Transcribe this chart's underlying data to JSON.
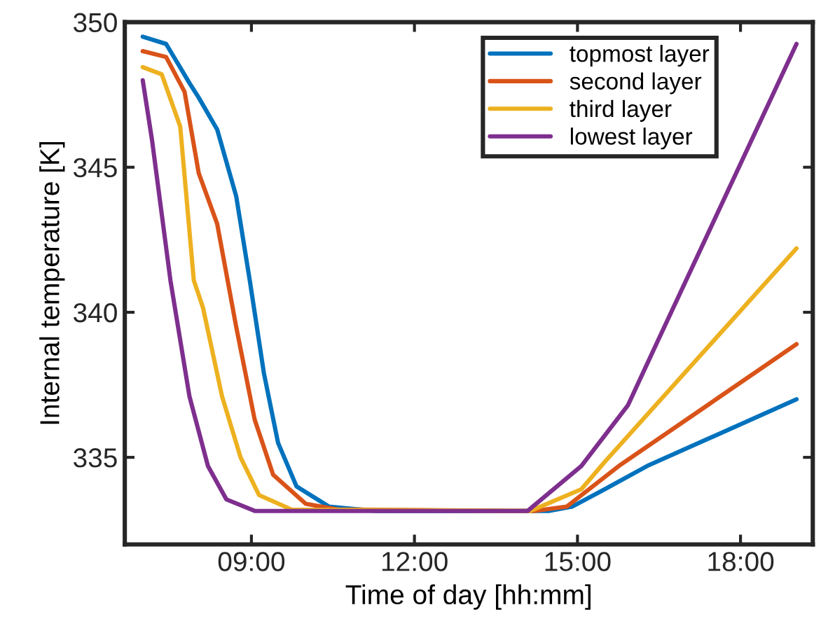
{
  "chart_data": {
    "type": "line",
    "xlabel": "Time of day [hh:mm]",
    "ylabel": "Internal temperature [K]",
    "xlim": [
      6.67,
      19.33
    ],
    "ylim": [
      332,
      350
    ],
    "xticks": [
      {
        "value": 9,
        "label": "09:00"
      },
      {
        "value": 12,
        "label": "12:00"
      },
      {
        "value": 15,
        "label": "15:00"
      },
      {
        "value": 18,
        "label": "18:00"
      }
    ],
    "yticks": [
      335,
      340,
      345,
      350
    ],
    "grid": false,
    "legend": "top right",
    "line_style": "solid",
    "marker": "none",
    "series": [
      {
        "name": "topmost layer",
        "color": "#0072bd",
        "x": [
          7.0,
          7.43,
          7.86,
          8.03,
          8.37,
          8.72,
          8.97,
          9.23,
          9.49,
          9.83,
          10.43,
          11.3,
          14.3,
          14.47,
          14.9,
          15.5,
          16.28,
          19.03
        ],
        "values": [
          349.5,
          349.25,
          347.9,
          347.4,
          346.3,
          344.0,
          341.1,
          337.9,
          335.5,
          334.0,
          333.3,
          333.15,
          333.15,
          333.15,
          333.3,
          333.9,
          334.7,
          337.0
        ]
      },
      {
        "name": "second layer",
        "color": "#d95319",
        "x": [
          7.0,
          7.43,
          7.77,
          8.03,
          8.37,
          8.72,
          9.06,
          9.4,
          10.0,
          10.6,
          14.2,
          14.8,
          15.76,
          19.03
        ],
        "values": [
          349.0,
          348.8,
          347.6,
          344.8,
          343.05,
          339.5,
          336.3,
          334.4,
          333.4,
          333.2,
          333.15,
          333.3,
          334.7,
          338.9
        ]
      },
      {
        "name": "third layer",
        "color": "#edb120",
        "x": [
          7.0,
          7.35,
          7.69,
          7.94,
          8.11,
          8.46,
          8.8,
          9.14,
          9.74,
          14.13,
          15.07,
          15.5,
          19.03
        ],
        "values": [
          348.45,
          348.2,
          346.4,
          341.1,
          340.15,
          337.1,
          335.0,
          333.7,
          333.2,
          333.15,
          333.9,
          334.84,
          342.2
        ]
      },
      {
        "name": "lowest layer",
        "color": "#7e2f8e",
        "x": [
          7.0,
          7.17,
          7.51,
          7.86,
          8.2,
          8.54,
          9.07,
          14.08,
          15.07,
          15.93,
          16.45,
          19.03
        ],
        "values": [
          348.0,
          345.95,
          341.1,
          337.1,
          334.7,
          333.55,
          333.15,
          333.15,
          334.7,
          336.8,
          338.9,
          349.25
        ]
      }
    ]
  }
}
